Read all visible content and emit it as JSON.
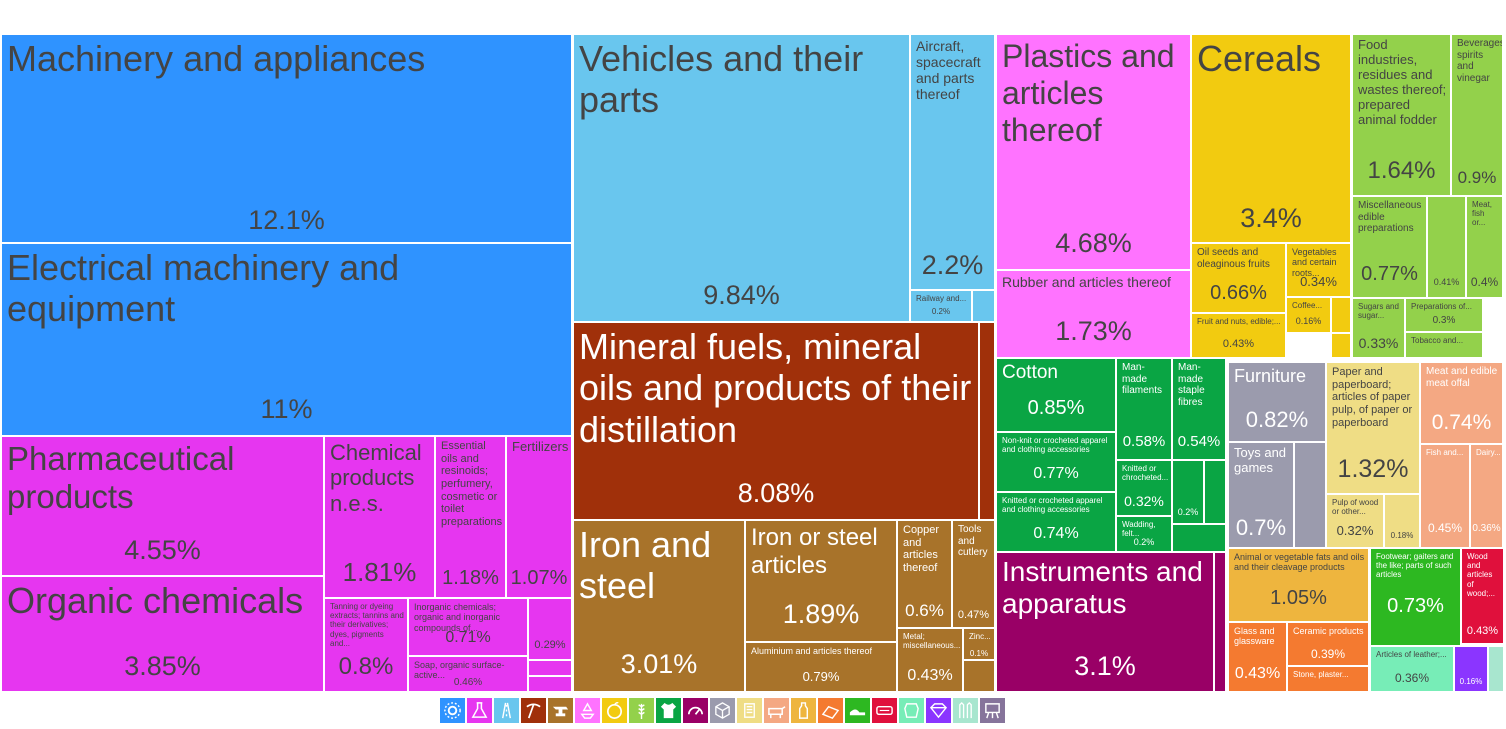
{
  "chart_data": {
    "type": "treemap",
    "title": "",
    "value_unit": "%",
    "items": [
      {
        "label": "Machinery and appliances",
        "value": 12.1,
        "color": "#2f93ff"
      },
      {
        "label": "Electrical machinery and equipment",
        "value": 11,
        "color": "#2f93ff"
      },
      {
        "label": "Pharmaceutical products",
        "value": 4.55,
        "color": "#e636f0"
      },
      {
        "label": "Organic chemicals",
        "value": 3.85,
        "color": "#e636f0"
      },
      {
        "label": "Chemical products n.e.s.",
        "value": 1.81,
        "color": "#e636f0"
      },
      {
        "label": "Essential oils and resinoids; perfumery, cosmetic or toilet preparations",
        "value": 1.18,
        "color": "#e636f0"
      },
      {
        "label": "Fertilizers",
        "value": 1.07,
        "color": "#e636f0"
      },
      {
        "label": "Tanning or dyeing extracts; tannins and their derivatives; dyes, pigments and...",
        "value": 0.8,
        "color": "#e636f0"
      },
      {
        "label": "Inorganic chemicals; organic and inorganic compounds of...",
        "value": 0.71,
        "color": "#e636f0"
      },
      {
        "label": "",
        "value": 0.29,
        "color": "#e636f0"
      },
      {
        "label": "Soap, organic surface-active...",
        "value": 0.46,
        "color": "#e636f0"
      },
      {
        "label": "Vehicles and their parts",
        "value": 9.84,
        "color": "#69c6ee"
      },
      {
        "label": "Aircraft, spacecraft and parts thereof",
        "value": 2.2,
        "color": "#69c6ee"
      },
      {
        "label": "Railway and...",
        "value": 0.2,
        "color": "#69c6ee"
      },
      {
        "label": "Mineral fuels, mineral oils and products of their distillation",
        "value": 8.08,
        "color": "#a0300a"
      },
      {
        "label": "Iron and steel",
        "value": 3.01,
        "color": "#a8732a"
      },
      {
        "label": "Iron or steel articles",
        "value": 1.89,
        "color": "#a8732a"
      },
      {
        "label": "Copper and articles thereof",
        "value": 0.6,
        "color": "#a8732a"
      },
      {
        "label": "Tools and cutlery",
        "value": 0.47,
        "color": "#a8732a"
      },
      {
        "label": "Aluminium and articles thereof",
        "value": 0.79,
        "color": "#a8732a"
      },
      {
        "label": "Metal; miscellaneous...",
        "value": 0.43,
        "color": "#a8732a"
      },
      {
        "label": "Zinc...",
        "value": 0.1,
        "color": "#a8732a"
      },
      {
        "label": "Plastics and articles thereof",
        "value": 4.68,
        "color": "#ff73ff"
      },
      {
        "label": "Rubber and articles thereof",
        "value": 1.73,
        "color": "#ff73ff"
      },
      {
        "label": "Cereals",
        "value": 3.4,
        "color": "#f2cb10"
      },
      {
        "label": "Oil seeds and oleaginous fruits",
        "value": 0.66,
        "color": "#f2cb10"
      },
      {
        "label": "Vegetables and certain roots...",
        "value": 0.34,
        "color": "#f2cb10"
      },
      {
        "label": "Coffee...",
        "value": 0.16,
        "color": "#f2cb10"
      },
      {
        "label": "Fruit and nuts, edible;...",
        "value": 0.43,
        "color": "#f2cb10"
      },
      {
        "label": "Food industries, residues and wastes thereof; prepared animal fodder",
        "value": 1.64,
        "color": "#93d14b"
      },
      {
        "label": "Beverages, spirits and vinegar",
        "value": 0.9,
        "color": "#93d14b"
      },
      {
        "label": "Miscellaneous edible preparations",
        "value": 0.77,
        "color": "#93d14b"
      },
      {
        "label": "",
        "value": 0.41,
        "color": "#93d14b"
      },
      {
        "label": "Meat, fish or...",
        "value": 0.4,
        "color": "#93d14b"
      },
      {
        "label": "Sugars and sugar...",
        "value": 0.33,
        "color": "#93d14b"
      },
      {
        "label": "Preparations of...",
        "value": 0.3,
        "color": "#93d14b"
      },
      {
        "label": "Tobacco and...",
        "value": null,
        "color": "#93d14b"
      },
      {
        "label": "Cotton",
        "value": 0.85,
        "color": "#0aa544"
      },
      {
        "label": "Man-made filaments",
        "value": 0.58,
        "color": "#0aa544"
      },
      {
        "label": "Man-made staple fibres",
        "value": 0.54,
        "color": "#0aa544"
      },
      {
        "label": "Non-knit or crocheted apparel and clothing accessories",
        "value": 0.77,
        "color": "#0aa544"
      },
      {
        "label": "Knitted or chrocheted...",
        "value": 0.32,
        "color": "#0aa544"
      },
      {
        "label": "",
        "value": 0.2,
        "color": "#0aa544"
      },
      {
        "label": "Knitted or crocheted apparel and clothing accessories",
        "value": 0.74,
        "color": "#0aa544"
      },
      {
        "label": "Wadding, felt...",
        "value": 0.2,
        "color": "#0aa544"
      },
      {
        "label": "Furniture",
        "value": 0.82,
        "color": "#9b9bad"
      },
      {
        "label": "Toys and games",
        "value": 0.7,
        "color": "#9b9bad"
      },
      {
        "label": "Paper and paperboard; articles of paper pulp, of paper or paperboard",
        "value": 1.32,
        "color": "#efdd85"
      },
      {
        "label": "Pulp of wood or other...",
        "value": 0.32,
        "color": "#efdd85"
      },
      {
        "label": "",
        "value": 0.18,
        "color": "#efdd85"
      },
      {
        "label": "Meat and edible meat offal",
        "value": 0.74,
        "color": "#f4a883"
      },
      {
        "label": "Fish and...",
        "value": 0.45,
        "color": "#f4a883"
      },
      {
        "label": "Dairy...",
        "value": 0.36,
        "color": "#f4a883"
      },
      {
        "label": "Instruments and apparatus",
        "value": 3.1,
        "color": "#990066"
      },
      {
        "label": "Animal or vegetable fats and oils and their cleavage products",
        "value": 1.05,
        "color": "#eeb53e"
      },
      {
        "label": "Glass and glassware",
        "value": 0.43,
        "color": "#f47a30"
      },
      {
        "label": "Ceramic products",
        "value": 0.39,
        "color": "#f47a30"
      },
      {
        "label": "Stone, plaster...",
        "value": null,
        "color": "#f47a30"
      },
      {
        "label": "Footwear; gaiters and the like; parts of such articles",
        "value": 0.73,
        "color": "#2db821"
      },
      {
        "label": "Wood and articles of wood;...",
        "value": 0.43,
        "color": "#e0103c"
      },
      {
        "label": "Articles of leather;...",
        "value": 0.36,
        "color": "#77edb7"
      },
      {
        "label": "",
        "value": 0.16,
        "color": "#8b35ff"
      }
    ],
    "legend": {
      "placement": "bottom-center",
      "icons": [
        {
          "icon": "gear-icon",
          "color": "#2f93ff"
        },
        {
          "icon": "flask-icon",
          "color": "#e636f0"
        },
        {
          "icon": "road-icon",
          "color": "#69c6ee"
        },
        {
          "icon": "pickaxe-icon",
          "color": "#a0300a"
        },
        {
          "icon": "anvil-icon",
          "color": "#a8732a"
        },
        {
          "icon": "recycle-icon",
          "color": "#ff73ff"
        },
        {
          "icon": "orange-icon",
          "color": "#f2cb10"
        },
        {
          "icon": "wheat-icon",
          "color": "#93d14b"
        },
        {
          "icon": "shirt-icon",
          "color": "#0aa544"
        },
        {
          "icon": "gauge-icon",
          "color": "#990066"
        },
        {
          "icon": "box-icon",
          "color": "#9b9bad"
        },
        {
          "icon": "scroll-icon",
          "color": "#efdd85"
        },
        {
          "icon": "cow-icon",
          "color": "#f4a883"
        },
        {
          "icon": "bottle-icon",
          "color": "#eeb53e"
        },
        {
          "icon": "bricks-icon",
          "color": "#f47a30"
        },
        {
          "icon": "shoe-icon",
          "color": "#2db821"
        },
        {
          "icon": "log-icon",
          "color": "#e0103c"
        },
        {
          "icon": "leather-icon",
          "color": "#77edb7"
        },
        {
          "icon": "gem-icon",
          "color": "#8b35ff"
        },
        {
          "icon": "fence-icon",
          "color": "#a8e6cf"
        },
        {
          "icon": "easel-icon",
          "color": "#86749b"
        }
      ]
    }
  }
}
